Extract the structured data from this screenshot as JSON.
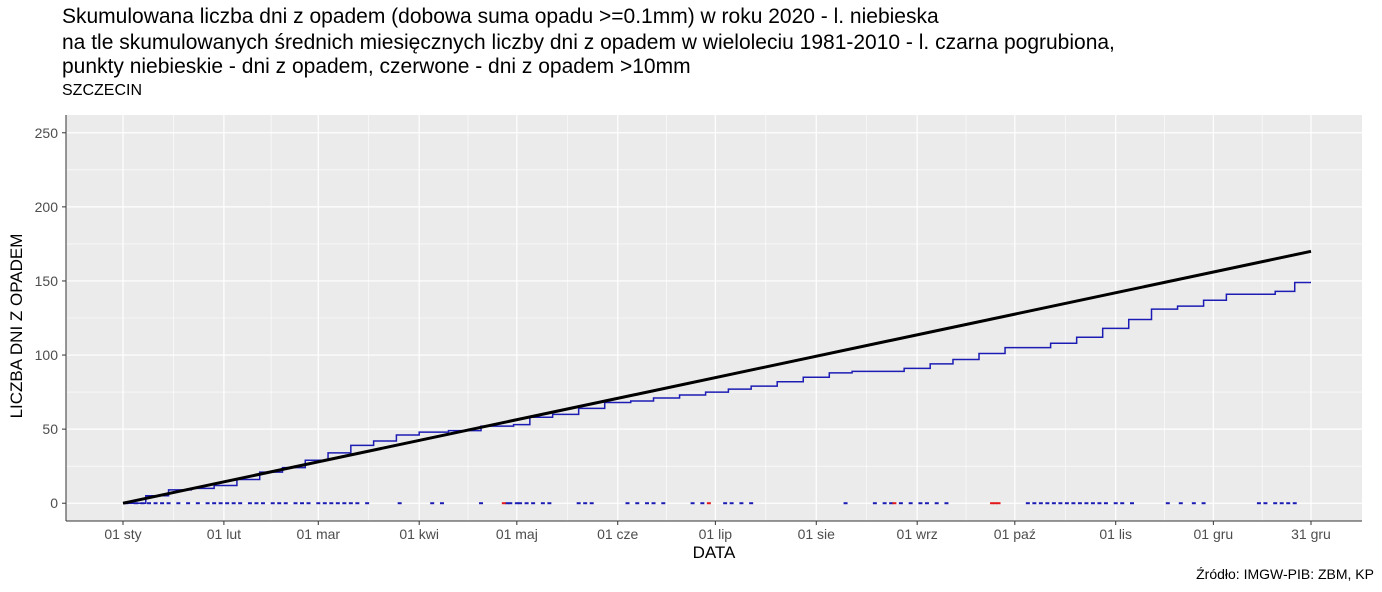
{
  "header": {
    "title_line1": "Skumulowana liczba dni z opadem (dobowa suma opadu >=0.1mm) w roku 2020 - l. niebieska",
    "title_line2": "na tle skumulowanych średnich miesięcznych liczby dni z opadem w wieloleciu 1981-2010 - l. czarna pogrubiona,",
    "title_line3": "punkty niebieskie - dni z opadem, czerwone - dni z opadem >10mm",
    "station": "SZCZECIN"
  },
  "source": "Źródło: IMGW-PIB: ZBM, KP",
  "colors": {
    "panel_bg": "#ebebeb",
    "grid": "#ffffff",
    "observed_line": "#1c1cb4",
    "normal_line": "#000000",
    "rain_day_point": "#1c1cb4",
    "heavy_rain_point": "#e31a1c"
  },
  "chart_data": {
    "type": "line",
    "xlabel": "DATA",
    "ylabel": "LICZBA DNI Z OPADEM",
    "x_range": [
      "2020-01-01",
      "2020-12-31"
    ],
    "ylim": [
      -12,
      262
    ],
    "y_ticks": [
      0,
      50,
      100,
      150,
      200,
      250
    ],
    "x_ticks": [
      {
        "date": "2020-01-01",
        "label": "01 sty"
      },
      {
        "date": "2020-02-01",
        "label": "01 lut"
      },
      {
        "date": "2020-03-01",
        "label": "01 mar"
      },
      {
        "date": "2020-04-01",
        "label": "01 kwi"
      },
      {
        "date": "2020-05-01",
        "label": "01 maj"
      },
      {
        "date": "2020-06-01",
        "label": "01 cze"
      },
      {
        "date": "2020-07-01",
        "label": "01 lip"
      },
      {
        "date": "2020-08-01",
        "label": "01 sie"
      },
      {
        "date": "2020-09-01",
        "label": "01 wrz"
      },
      {
        "date": "2020-10-01",
        "label": "01 paź"
      },
      {
        "date": "2020-11-01",
        "label": "01 lis"
      },
      {
        "date": "2020-12-01",
        "label": "01 gru"
      },
      {
        "date": "2020-12-31",
        "label": "31 gru"
      }
    ],
    "grid": true,
    "legend": "none",
    "series": [
      {
        "name": "",
        "style": "step",
        "points": [
          [
            "2020-01-01",
            0
          ],
          [
            "2020-01-08",
            5
          ],
          [
            "2020-01-15",
            9
          ],
          [
            "2020-01-22",
            10
          ],
          [
            "2020-01-29",
            12
          ],
          [
            "2020-02-05",
            16
          ],
          [
            "2020-02-12",
            21
          ],
          [
            "2020-02-19",
            24
          ],
          [
            "2020-02-26",
            29
          ],
          [
            "2020-03-04",
            34
          ],
          [
            "2020-03-11",
            39
          ],
          [
            "2020-03-18",
            42
          ],
          [
            "2020-03-25",
            46
          ],
          [
            "2020-04-01",
            48
          ],
          [
            "2020-04-10",
            49
          ],
          [
            "2020-04-20",
            52
          ],
          [
            "2020-04-30",
            53
          ],
          [
            "2020-05-05",
            58
          ],
          [
            "2020-05-12",
            60
          ],
          [
            "2020-05-20",
            64
          ],
          [
            "2020-05-28",
            68
          ],
          [
            "2020-06-05",
            69
          ],
          [
            "2020-06-12",
            71
          ],
          [
            "2020-06-20",
            73
          ],
          [
            "2020-06-28",
            75
          ],
          [
            "2020-07-05",
            77
          ],
          [
            "2020-07-12",
            79
          ],
          [
            "2020-07-20",
            82
          ],
          [
            "2020-07-28",
            85
          ],
          [
            "2020-08-05",
            88
          ],
          [
            "2020-08-12",
            89
          ],
          [
            "2020-08-20",
            89
          ],
          [
            "2020-08-28",
            91
          ],
          [
            "2020-09-05",
            94
          ],
          [
            "2020-09-12",
            97
          ],
          [
            "2020-09-20",
            101
          ],
          [
            "2020-09-28",
            105
          ],
          [
            "2020-10-05",
            105
          ],
          [
            "2020-10-12",
            108
          ],
          [
            "2020-10-20",
            112
          ],
          [
            "2020-10-28",
            118
          ],
          [
            "2020-11-05",
            124
          ],
          [
            "2020-11-12",
            131
          ],
          [
            "2020-11-20",
            133
          ],
          [
            "2020-11-28",
            137
          ],
          [
            "2020-12-05",
            141
          ],
          [
            "2020-12-12",
            141
          ],
          [
            "2020-12-20",
            143
          ],
          [
            "2020-12-26",
            149
          ],
          [
            "2020-12-31",
            149
          ]
        ]
      },
      {
        "name": "",
        "style": "thick",
        "points": [
          [
            "2020-01-01",
            0
          ],
          [
            "2020-12-31",
            170
          ]
        ]
      }
    ],
    "rain_day_points": {
      "y": 0,
      "dates": [
        "2020-01-02",
        "2020-01-05",
        "2020-01-07",
        "2020-01-09",
        "2020-01-11",
        "2020-01-13",
        "2020-01-15",
        "2020-01-18",
        "2020-01-21",
        "2020-01-24",
        "2020-01-27",
        "2020-01-29",
        "2020-01-31",
        "2020-02-02",
        "2020-02-04",
        "2020-02-06",
        "2020-02-09",
        "2020-02-11",
        "2020-02-13",
        "2020-02-16",
        "2020-02-18",
        "2020-02-20",
        "2020-02-23",
        "2020-02-25",
        "2020-02-27",
        "2020-03-01",
        "2020-03-03",
        "2020-03-05",
        "2020-03-07",
        "2020-03-09",
        "2020-03-11",
        "2020-03-13",
        "2020-03-16",
        "2020-03-26",
        "2020-04-05",
        "2020-04-08",
        "2020-04-20",
        "2020-04-28",
        "2020-04-29",
        "2020-05-01",
        "2020-05-02",
        "2020-05-04",
        "2020-05-06",
        "2020-05-09",
        "2020-05-11",
        "2020-05-20",
        "2020-05-22",
        "2020-05-24",
        "2020-06-04",
        "2020-06-07",
        "2020-06-10",
        "2020-06-12",
        "2020-06-15",
        "2020-06-24",
        "2020-06-27",
        "2020-07-04",
        "2020-07-06",
        "2020-07-09",
        "2020-07-12",
        "2020-08-10",
        "2020-08-19",
        "2020-08-22",
        "2020-08-24",
        "2020-08-27",
        "2020-08-30",
        "2020-09-02",
        "2020-09-04",
        "2020-09-07",
        "2020-09-10",
        "2020-10-05",
        "2020-10-07",
        "2020-10-09",
        "2020-10-11",
        "2020-10-13",
        "2020-10-15",
        "2020-10-17",
        "2020-10-19",
        "2020-10-21",
        "2020-10-23",
        "2020-10-25",
        "2020-10-27",
        "2020-10-29",
        "2020-11-01",
        "2020-11-03",
        "2020-11-06",
        "2020-11-17",
        "2020-11-21",
        "2020-11-25",
        "2020-11-28",
        "2020-12-15",
        "2020-12-17",
        "2020-12-20",
        "2020-12-22",
        "2020-12-24",
        "2020-12-26"
      ]
    },
    "heavy_rain_points": {
      "y": 0,
      "dates": [
        "2020-04-27",
        "2020-06-29",
        "2020-08-25",
        "2020-09-24",
        "2020-09-25",
        "2020-09-26"
      ]
    }
  }
}
